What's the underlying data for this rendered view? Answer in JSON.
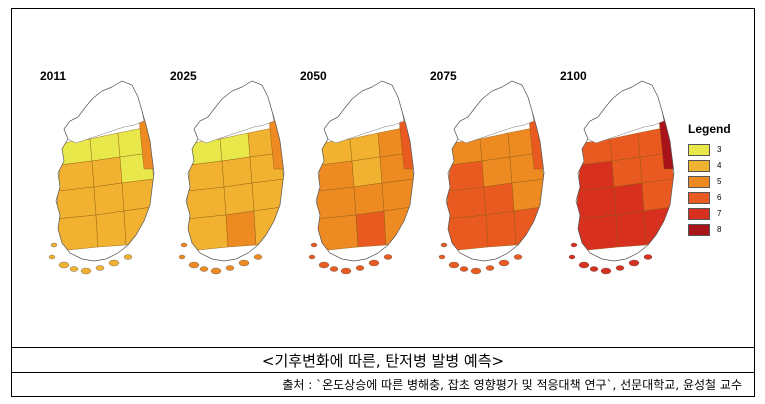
{
  "panels": [
    {
      "year": "2011",
      "grade": [
        3,
        3,
        3,
        4,
        4,
        3,
        4,
        4,
        4,
        4,
        4,
        4,
        5
      ],
      "coast_grade": 4
    },
    {
      "year": "2025",
      "grade": [
        3,
        3,
        4,
        4,
        4,
        4,
        4,
        4,
        4,
        4,
        5,
        4,
        5
      ],
      "coast_grade": 5
    },
    {
      "year": "2050",
      "grade": [
        4,
        4,
        5,
        5,
        4,
        5,
        5,
        5,
        5,
        5,
        6,
        5,
        6
      ],
      "coast_grade": 6
    },
    {
      "year": "2075",
      "grade": [
        5,
        5,
        5,
        6,
        5,
        5,
        6,
        6,
        5,
        6,
        6,
        6,
        6
      ],
      "coast_grade": 6
    },
    {
      "year": "2100",
      "grade": [
        6,
        6,
        6,
        7,
        6,
        6,
        7,
        7,
        6,
        7,
        7,
        7,
        8
      ],
      "coast_grade": 7
    }
  ],
  "legend": {
    "title": "Legend",
    "items": [
      {
        "label": "3",
        "color": "#e8e84a"
      },
      {
        "label": "4",
        "color": "#f0b230"
      },
      {
        "label": "5",
        "color": "#ee8a22"
      },
      {
        "label": "6",
        "color": "#e85a20"
      },
      {
        "label": "7",
        "color": "#d8301e"
      },
      {
        "label": "8",
        "color": "#a8141a"
      }
    ]
  },
  "caption": "<기후변화에 따른, 탄저병 발병 예측>",
  "source": "출처 : `온도상승에 따른 병해충, 잡초 영향평가 및 적응대책 연구`, 선문대학교, 윤성철 교수"
}
